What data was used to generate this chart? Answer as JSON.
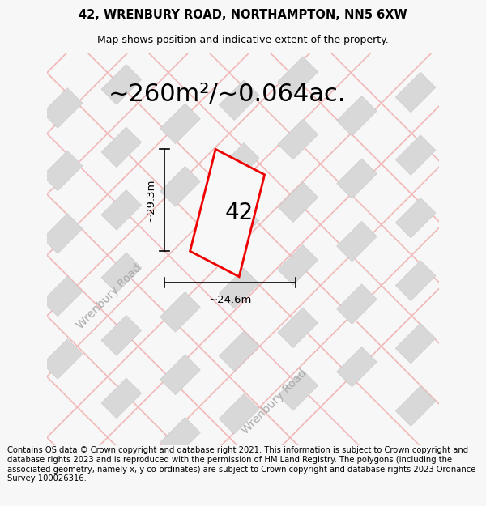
{
  "title": "42, WRENBURY ROAD, NORTHAMPTON, NN5 6XW",
  "subtitle": "Map shows position and indicative extent of the property.",
  "area_text": "~260m²/~0.064ac.",
  "label_42": "42",
  "dim_width": "~24.6m",
  "dim_height": "~29.3m",
  "road_label_nw": "Wrenbury Road",
  "road_label_se": "Wrenbury Road",
  "footer": "Contains OS data © Crown copyright and database right 2021. This information is subject to Crown copyright and database rights 2023 and is reproduced with the permission of HM Land Registry. The polygons (including the associated geometry, namely x, y co-ordinates) are subject to Crown copyright and database rights 2023 Ordnance Survey 100026316.",
  "bg_color": "#f7f7f7",
  "map_bg": "#f8f8f8",
  "road_line_color": "#f0b8b8",
  "building_fill": "#d8d8d8",
  "building_edge": "#c8c8c8",
  "plot_color": "#ee0000",
  "plot_fill": "#f8f8f8",
  "title_fontsize": 10.5,
  "subtitle_fontsize": 9,
  "area_fontsize": 22,
  "label_fontsize": 20,
  "footer_fontsize": 7.2,
  "road_fontsize": 10,
  "dim_fontsize": 9.5,
  "road_lw": 1.2,
  "plot_lw": 2.0
}
